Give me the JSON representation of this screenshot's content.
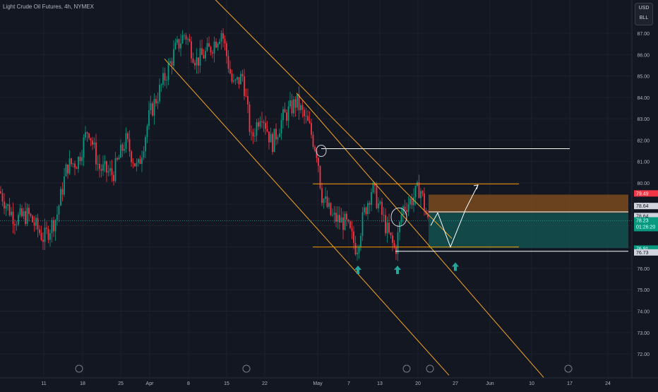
{
  "header": {
    "symbol_line": "Light Crude Oil Futures, 4h, NYMEX",
    "currency": "USD",
    "unit": "BLL"
  },
  "colors": {
    "background": "#131722",
    "up": "#089981",
    "down": "#f23645",
    "channel": "#f5a623",
    "range": "#ff9800",
    "white_line": "#ffffff",
    "target_zone": "#7a4a1c",
    "stop_zone": "#14514f",
    "arrow": "#26a69a",
    "grid": "#1e222d"
  },
  "chart_data": {
    "type": "candlestick",
    "title": "",
    "interval": "4h",
    "ylim": [
      71.2,
      87.8
    ],
    "y_ticks": [
      72.0,
      73.0,
      74.0,
      75.0,
      76.0,
      77.0,
      78.0,
      79.0,
      80.0,
      81.0,
      82.0,
      83.0,
      84.0,
      85.0,
      86.0,
      87.0
    ],
    "x_ticks": [
      "11",
      "18",
      "25",
      "Apr",
      "8",
      "15",
      "22",
      "May",
      "7",
      "13",
      "20",
      "Jun",
      "10",
      "17",
      "24"
    ],
    "x_ticks_extra": [
      "27"
    ],
    "price_labels": [
      {
        "label": "79.49",
        "value": 79.49,
        "style": "red"
      },
      {
        "label": "78.64",
        "value": 78.9,
        "style": "plain"
      },
      {
        "label": "78.64",
        "value": 78.43,
        "style": "plain"
      },
      {
        "label": "78.23",
        "value": 78.23,
        "style": "current",
        "countdown": "01:26:20"
      },
      {
        "label": "76.91",
        "value": 76.91,
        "style": "teal"
      },
      {
        "label": "76.73",
        "value": 76.73,
        "style": "plain"
      }
    ],
    "series_path": [
      [
        0,
        79.6
      ],
      [
        10,
        78.9
      ],
      [
        22,
        78.3
      ],
      [
        40,
        78.5
      ],
      [
        62,
        77.4
      ],
      [
        80,
        78.4
      ],
      [
        95,
        80.8
      ],
      [
        110,
        81.0
      ],
      [
        125,
        82.6
      ],
      [
        140,
        80.7
      ],
      [
        160,
        80.4
      ],
      [
        178,
        82.0
      ],
      [
        195,
        80.6
      ],
      [
        212,
        83.2
      ],
      [
        232,
        84.8
      ],
      [
        248,
        86.2
      ],
      [
        262,
        87.0
      ],
      [
        278,
        85.7
      ],
      [
        296,
        86.2
      ],
      [
        314,
        87.1
      ],
      [
        330,
        84.5
      ],
      [
        344,
        85.0
      ],
      [
        356,
        82.0
      ],
      [
        370,
        83.4
      ],
      [
        385,
        81.8
      ],
      [
        400,
        83.0
      ],
      [
        420,
        83.8
      ],
      [
        438,
        82.6
      ],
      [
        450,
        81.3
      ],
      [
        455,
        79.5
      ],
      [
        470,
        78.4
      ],
      [
        490,
        78.1
      ],
      [
        505,
        76.9
      ],
      [
        515,
        78.5
      ],
      [
        527,
        79.8
      ],
      [
        540,
        78.6
      ],
      [
        550,
        77.6
      ],
      [
        560,
        76.8
      ],
      [
        570,
        78.8
      ],
      [
        585,
        79.3
      ],
      [
        595,
        79.8
      ],
      [
        607,
        78.0
      ]
    ],
    "annotations": {
      "channel_upper": {
        "start": [
          292,
          89.0
        ],
        "end": [
          640,
          77.4
        ]
      },
      "channel_lower": {
        "start": [
          233,
          85.8
        ],
        "end": [
          636,
          71.0
        ]
      },
      "channel_outer": {
        "start": [
          420,
          84.2
        ],
        "end": [
          770,
          70.9
        ]
      },
      "resistance_line": {
        "x_start": 455,
        "x_end": 807,
        "value": 81.6
      },
      "range_top": {
        "x_start": 443,
        "x_end": 735,
        "value": 79.95
      },
      "range_bottom": {
        "x_start": 443,
        "x_end": 735,
        "value": 77.0
      },
      "range_mid_white": {
        "x_start": 560,
        "x_end": 890,
        "value": 76.8
      },
      "target_zone": {
        "x_start": 607,
        "x_end": 890,
        "y_top": 79.45,
        "y_bottom": 78.6
      },
      "stop_zone": {
        "x_start": 607,
        "x_end": 890,
        "y_top": 78.6,
        "y_bottom": 76.95
      },
      "zone_mid_line": {
        "x_start": 607,
        "x_end": 890,
        "value": 78.64
      },
      "projection_white": [
        [
          610,
          78.0
        ],
        [
          620,
          78.6
        ],
        [
          638,
          77.0
        ],
        [
          660,
          78.8
        ]
      ],
      "projection_orange": [
        [
          660,
          78.8
        ],
        [
          677,
          79.9
        ]
      ],
      "circles": [
        {
          "x": 455,
          "value": 81.5
        },
        {
          "x": 565,
          "value": 78.4
        }
      ],
      "arrows_up": [
        {
          "x": 507,
          "value": 75.9
        },
        {
          "x": 563,
          "value": 75.9
        },
        {
          "x": 645,
          "value": 76.05
        }
      ]
    }
  }
}
